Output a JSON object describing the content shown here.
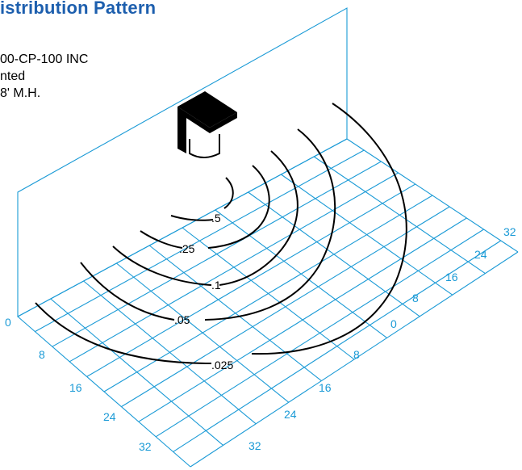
{
  "title": "istribution Pattern",
  "info_lines": [
    "00-CP-100 INC",
    "nted",
    "8' M.H."
  ],
  "contour_labels": [
    ".5",
    ".25",
    ".1",
    ".05",
    ".025"
  ],
  "left_axis_ticks": [
    "0",
    "8",
    "16",
    "24",
    "32"
  ],
  "right_axis_ticks_front": [
    "8",
    "16",
    "24",
    "32"
  ],
  "right_axis_ticks_back": [
    "0",
    "8",
    "16",
    "24",
    "32"
  ],
  "colors": {
    "title": "#1d5fae",
    "grid": "#1a9ad6",
    "contour": "#000000"
  }
}
